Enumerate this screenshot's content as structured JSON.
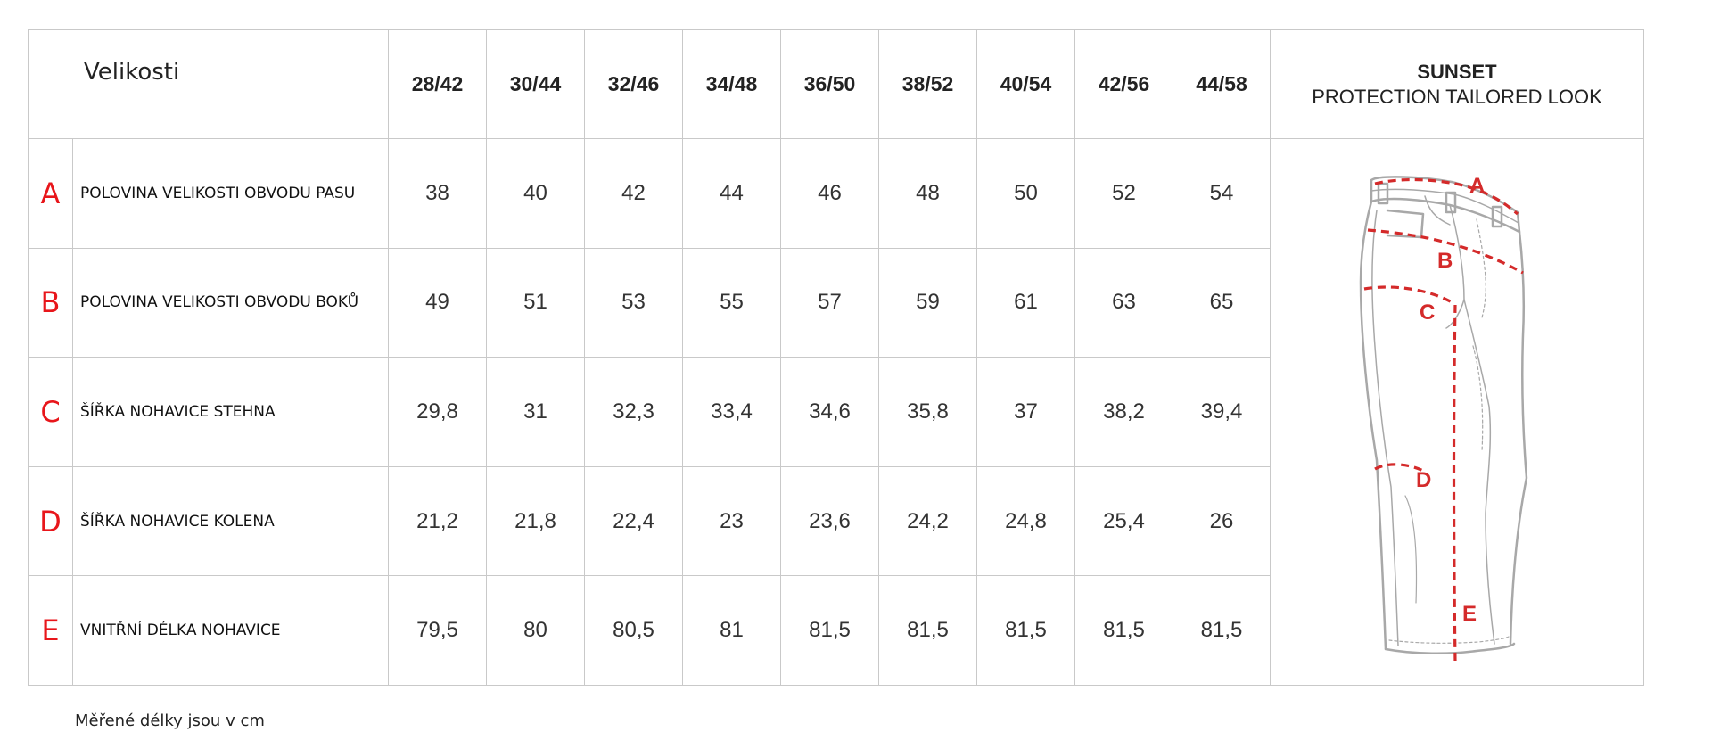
{
  "table": {
    "header_label": "Velikosti",
    "sizes": [
      "28/42",
      "30/44",
      "32/46",
      "34/48",
      "36/50",
      "38/52",
      "40/54",
      "42/56",
      "44/58"
    ],
    "product_name": "SUNSET",
    "product_subtitle": "PROTECTION TAILORED LOOK",
    "rows": [
      {
        "letter": "A",
        "label": "POLOVINA VELIKOSTI OBVODU PASU",
        "values": [
          "38",
          "40",
          "42",
          "44",
          "46",
          "48",
          "50",
          "52",
          "54"
        ]
      },
      {
        "letter": "B",
        "label": "POLOVINA VELIKOSTI OBVODU BOKŮ",
        "values": [
          "49",
          "51",
          "53",
          "55",
          "57",
          "59",
          "61",
          "63",
          "65"
        ]
      },
      {
        "letter": "C",
        "label": "ŠÍŘKA NOHAVICE STEHNA",
        "values": [
          "29,8",
          "31",
          "32,3",
          "33,4",
          "34,6",
          "35,8",
          "37",
          "38,2",
          "39,4"
        ]
      },
      {
        "letter": "D",
        "label": "ŠÍŘKA NOHAVICE KOLENA",
        "values": [
          "21,2",
          "21,8",
          "22,4",
          "23",
          "23,6",
          "24,2",
          "24,8",
          "25,4",
          "26"
        ]
      },
      {
        "letter": "E",
        "label": "VNITŘNÍ DÉLKA NOHAVICE",
        "values": [
          "79,5",
          "80",
          "80,5",
          "81",
          "81,5",
          "81,5",
          "81,5",
          "81,5",
          "81,5"
        ]
      }
    ]
  },
  "illustration": {
    "markers": [
      "A",
      "B",
      "C",
      "D",
      "E"
    ],
    "marker_color": "#d42a2a",
    "outline_color": "#a8a8a8"
  },
  "footnote": "Měřené délky jsou v cm"
}
